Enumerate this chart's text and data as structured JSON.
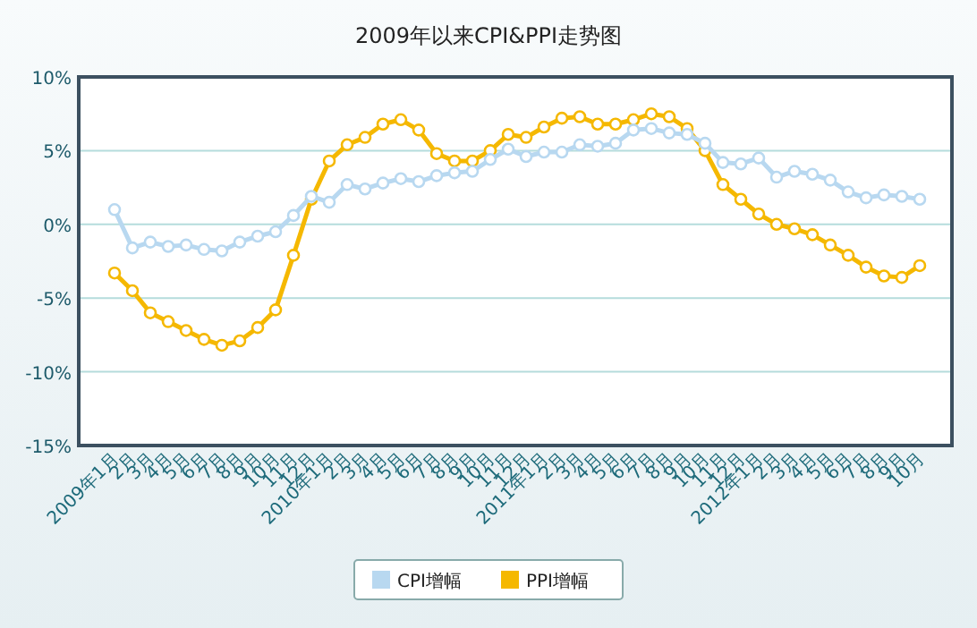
{
  "chart_data": {
    "type": "line",
    "title": "2009年以来CPI&PPI走势图",
    "categories": [
      "2009年1月",
      "2月",
      "3月",
      "4月",
      "5月",
      "6月",
      "7月",
      "8月",
      "9月",
      "10月",
      "11月",
      "12月",
      "2010年1月",
      "2月",
      "3月",
      "4月",
      "5月",
      "6月",
      "7月",
      "8月",
      "9月",
      "10月",
      "11月",
      "12月",
      "2011年1月",
      "2月",
      "3月",
      "4月",
      "5月",
      "6月",
      "7月",
      "8月",
      "9月",
      "10月",
      "11月",
      "12月",
      "2012年1月",
      "2月",
      "3月",
      "4月",
      "5月",
      "6月",
      "7月",
      "8月",
      "9月",
      "10月"
    ],
    "series": [
      {
        "name": "CPI增幅",
        "color": "#b8d8f0",
        "values": [
          1.0,
          -1.6,
          -1.2,
          -1.5,
          -1.4,
          -1.7,
          -1.8,
          -1.2,
          -0.8,
          -0.5,
          0.6,
          1.9,
          1.5,
          2.7,
          2.4,
          2.8,
          3.1,
          2.9,
          3.3,
          3.5,
          3.6,
          4.4,
          5.1,
          4.6,
          4.9,
          4.9,
          5.4,
          5.3,
          5.5,
          6.4,
          6.5,
          6.2,
          6.1,
          5.5,
          4.2,
          4.1,
          4.5,
          3.2,
          3.6,
          3.4,
          3.0,
          2.2,
          1.8,
          2.0,
          1.9,
          1.7
        ]
      },
      {
        "name": "PPI增幅",
        "color": "#f5b800",
        "values": [
          -3.3,
          -4.5,
          -6.0,
          -6.6,
          -7.2,
          -7.8,
          -8.2,
          -7.9,
          -7.0,
          -5.8,
          -2.1,
          1.7,
          4.3,
          5.4,
          5.9,
          6.8,
          7.1,
          6.4,
          4.8,
          4.3,
          4.3,
          5.0,
          6.1,
          5.9,
          6.6,
          7.2,
          7.3,
          6.8,
          6.8,
          7.1,
          7.5,
          7.3,
          6.5,
          5.0,
          2.7,
          1.7,
          0.7,
          0.0,
          -0.3,
          -0.7,
          -1.4,
          -2.1,
          -2.9,
          -3.5,
          -3.6,
          -2.8
        ]
      }
    ],
    "ylim": [
      -15,
      10
    ],
    "yticks": [
      {
        "value": -15,
        "label": "-15%"
      },
      {
        "value": -10,
        "label": "-10%"
      },
      {
        "value": -5,
        "label": "-5%"
      },
      {
        "value": 0,
        "label": "0%"
      },
      {
        "value": 5,
        "label": "5%"
      },
      {
        "value": 10,
        "label": "10%"
      }
    ],
    "grid": "y",
    "legend": "bottom",
    "marker": "circle",
    "line_style": "solid"
  }
}
